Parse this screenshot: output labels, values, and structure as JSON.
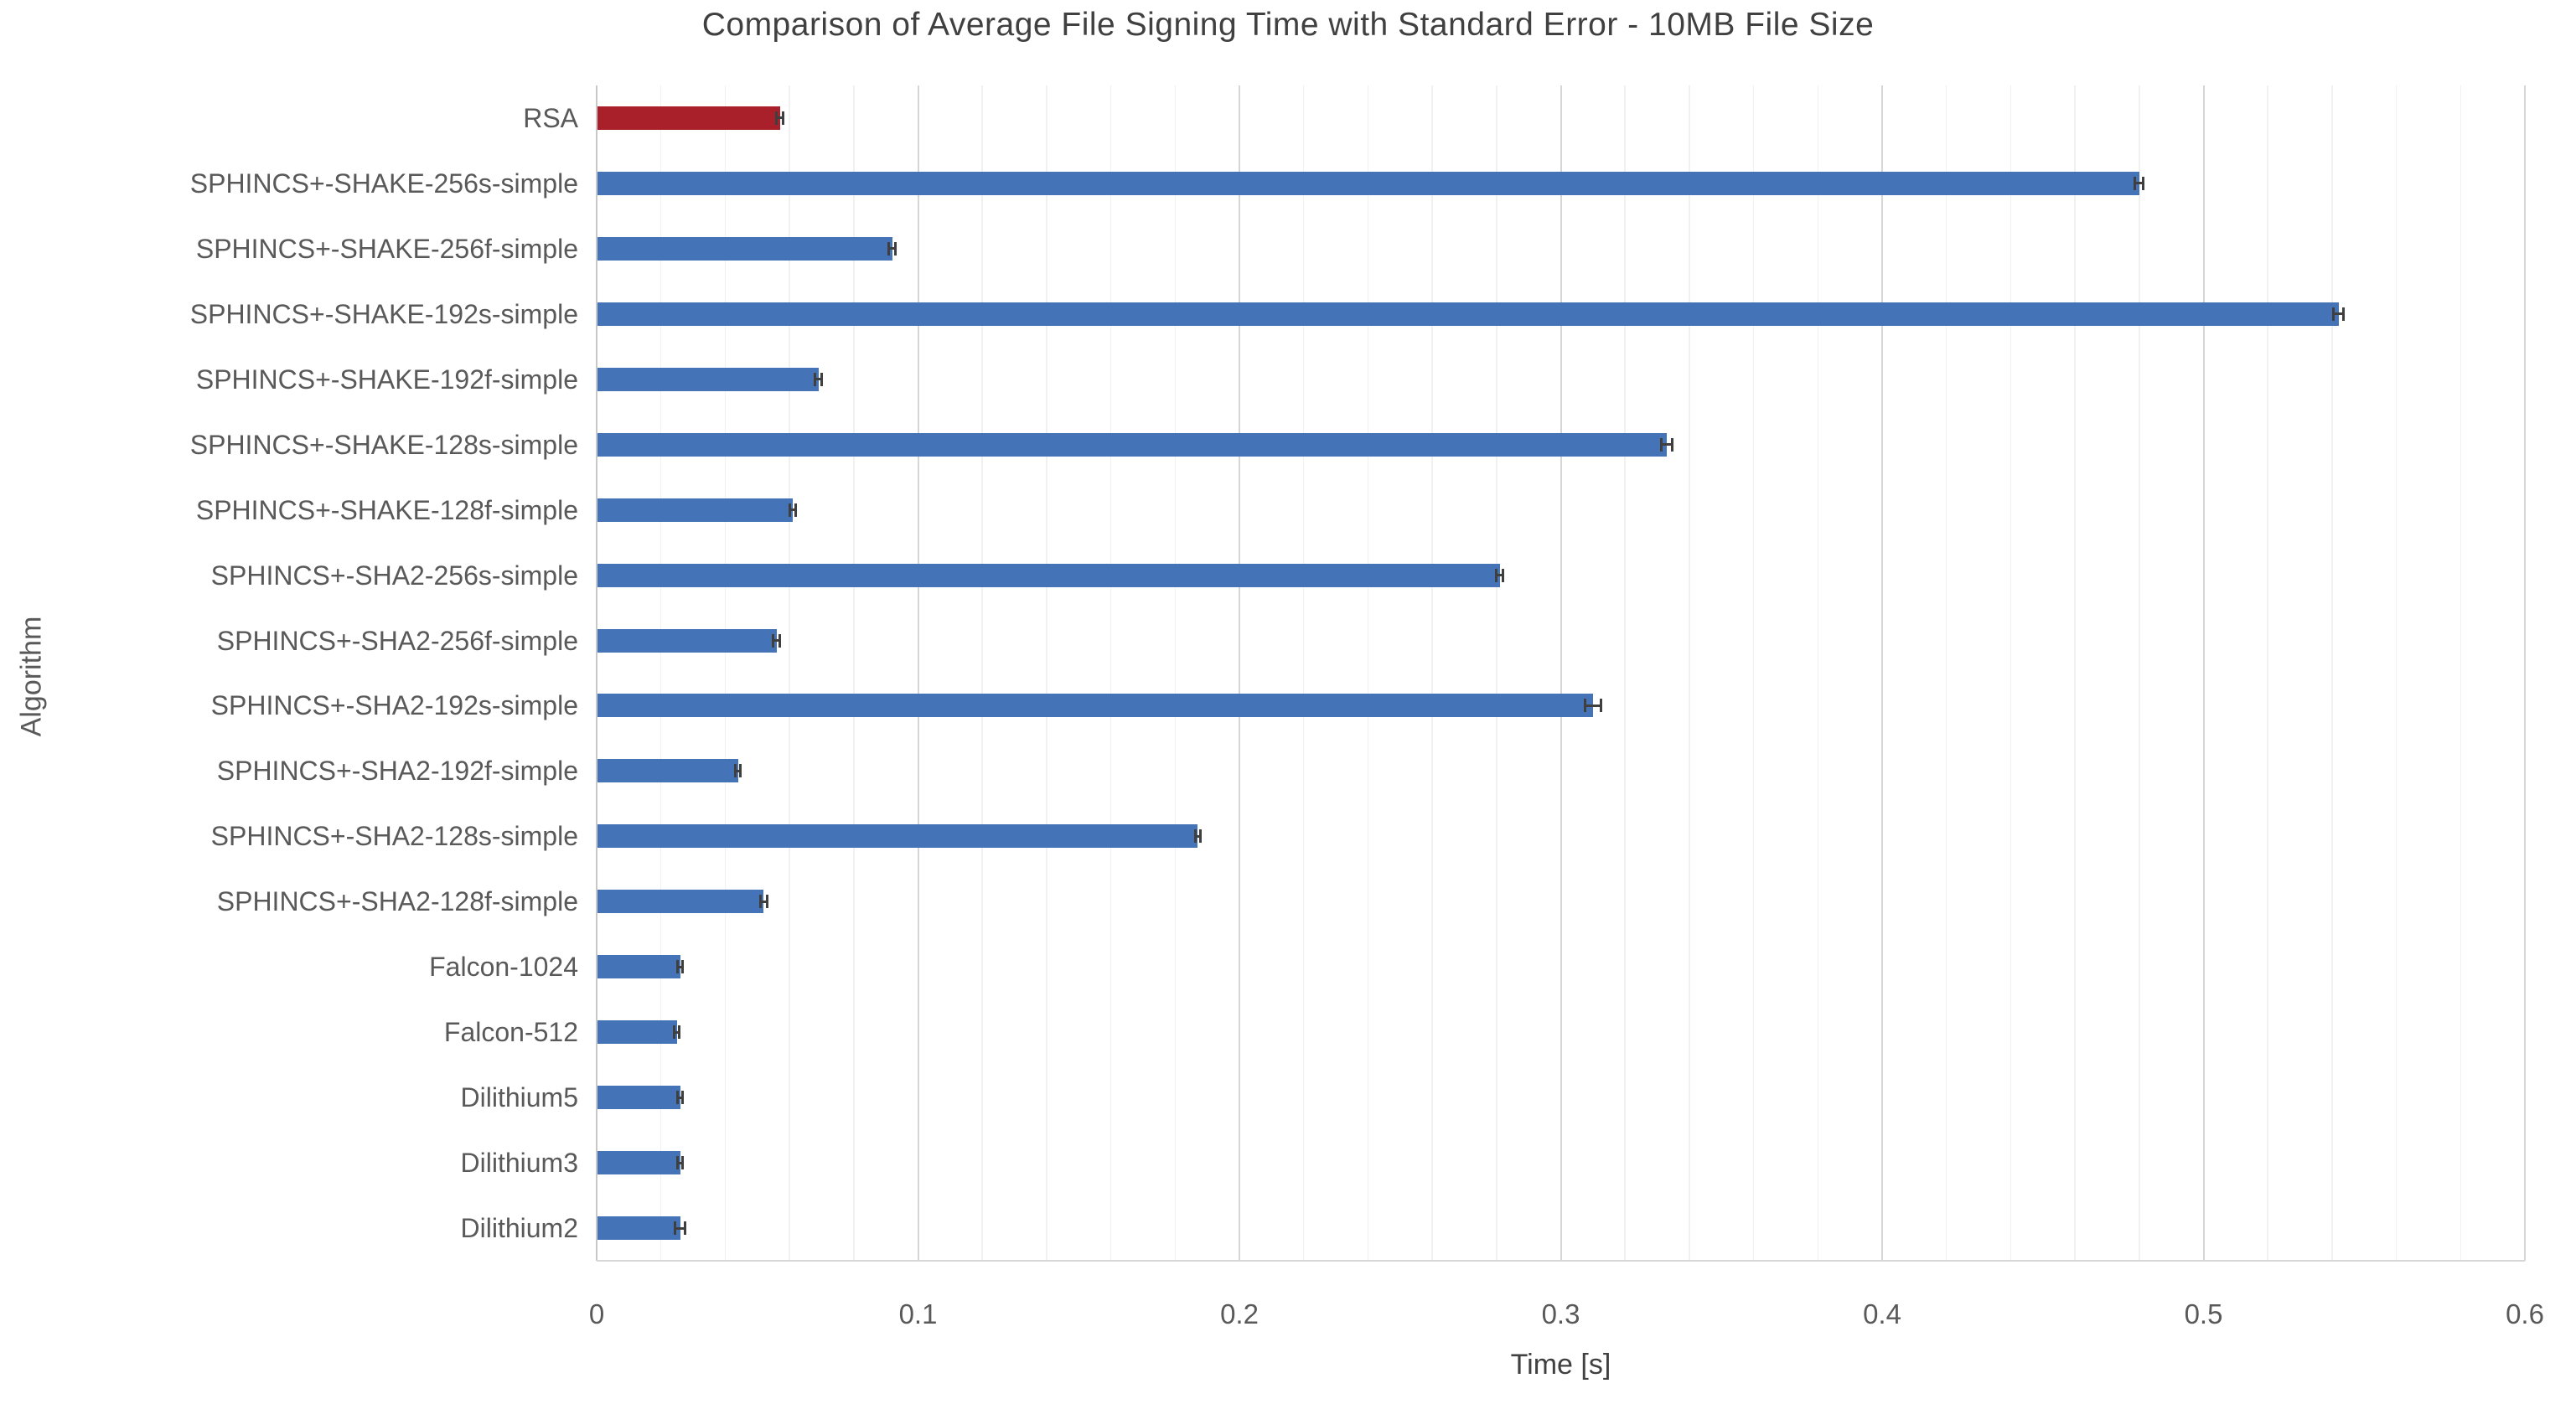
{
  "chart_data": {
    "type": "bar",
    "orientation": "horizontal",
    "title": "Comparison of Average File Signing Time with Standard Error - 10MB File Size",
    "xlabel": "Time [s]",
    "ylabel": "Algorithm",
    "xlim": [
      0,
      0.6
    ],
    "x_tick_values": [
      0,
      0.1,
      0.2,
      0.3,
      0.4,
      0.5,
      0.6
    ],
    "x_tick_labels": [
      "0",
      "0.1",
      "0.2",
      "0.3",
      "0.4",
      "0.5",
      "0.6"
    ],
    "minor_grid_step": 0.02,
    "grid": true,
    "legend": false,
    "error_bars": true,
    "colors": {
      "default_bar": "#4473b8",
      "highlight_bar": "#a9202b",
      "error_bar": "#3f3f3f"
    },
    "bars": [
      {
        "label": "RSA",
        "value": 0.057,
        "error": 0.001,
        "highlight": true
      },
      {
        "label": "SPHINCS+-SHAKE-256s-simple",
        "value": 0.48,
        "error": 0.0013,
        "highlight": false
      },
      {
        "label": "SPHINCS+-SHAKE-256f-simple",
        "value": 0.092,
        "error": 0.001,
        "highlight": false
      },
      {
        "label": "SPHINCS+-SHAKE-192s-simple",
        "value": 0.542,
        "error": 0.0015,
        "highlight": false
      },
      {
        "label": "SPHINCS+-SHAKE-192f-simple",
        "value": 0.069,
        "error": 0.001,
        "highlight": false
      },
      {
        "label": "SPHINCS+-SHAKE-128s-simple",
        "value": 0.333,
        "error": 0.0017,
        "highlight": false
      },
      {
        "label": "SPHINCS+-SHAKE-128f-simple",
        "value": 0.061,
        "error": 0.001,
        "highlight": false
      },
      {
        "label": "SPHINCS+-SHA2-256s-simple",
        "value": 0.281,
        "error": 0.001,
        "highlight": false
      },
      {
        "label": "SPHINCS+-SHA2-256f-simple",
        "value": 0.056,
        "error": 0.001,
        "highlight": false
      },
      {
        "label": "SPHINCS+-SHA2-192s-simple",
        "value": 0.31,
        "error": 0.0025,
        "highlight": false
      },
      {
        "label": "SPHINCS+-SHA2-192f-simple",
        "value": 0.044,
        "error": 0.0008,
        "highlight": false
      },
      {
        "label": "SPHINCS+-SHA2-128s-simple",
        "value": 0.187,
        "error": 0.0008,
        "highlight": false
      },
      {
        "label": "SPHINCS+-SHA2-128f-simple",
        "value": 0.052,
        "error": 0.001,
        "highlight": false
      },
      {
        "label": "Falcon-1024",
        "value": 0.026,
        "error": 0.0008,
        "highlight": false
      },
      {
        "label": "Falcon-512",
        "value": 0.025,
        "error": 0.0008,
        "highlight": false
      },
      {
        "label": "Dilithium5",
        "value": 0.026,
        "error": 0.0008,
        "highlight": false
      },
      {
        "label": "Dilithium3",
        "value": 0.026,
        "error": 0.0008,
        "highlight": false
      },
      {
        "label": "Dilithium2",
        "value": 0.026,
        "error": 0.0015,
        "highlight": false
      }
    ]
  }
}
